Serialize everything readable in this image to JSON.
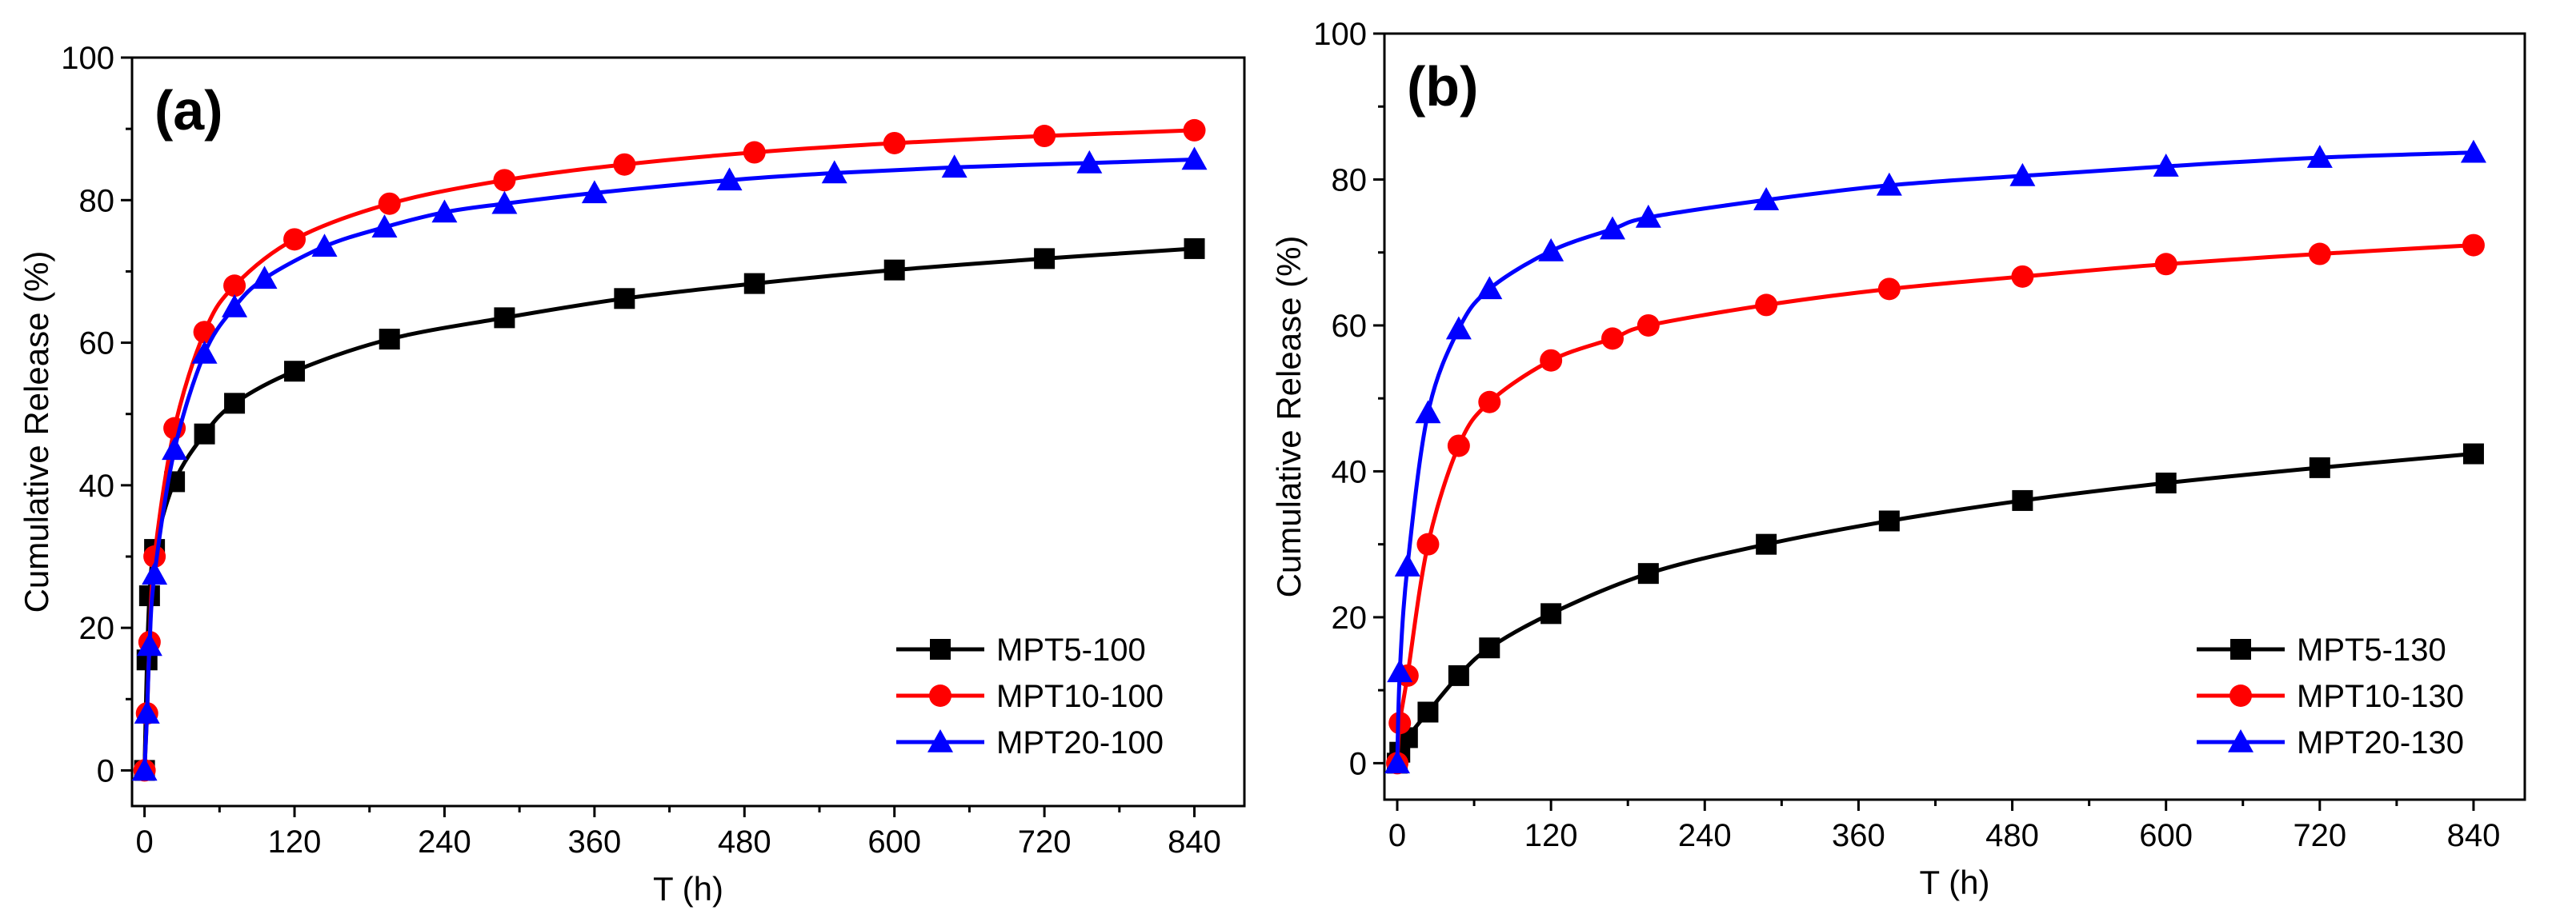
{
  "chart_data": [
    {
      "type": "line",
      "panel_label": "(a)",
      "xlabel": "T (h)",
      "ylabel": "Cumulative Release (%)",
      "xlim": [
        -10,
        880
      ],
      "ylim": [
        -5,
        100
      ],
      "xticks": [
        0,
        120,
        240,
        360,
        480,
        600,
        720,
        840
      ],
      "xtick_labels": [
        "0",
        "120",
        "240",
        "360",
        "480",
        "600",
        "720",
        "840"
      ],
      "yticks": [
        0,
        20,
        40,
        60,
        80,
        100
      ],
      "ytick_labels": [
        "0",
        "20",
        "40",
        "60",
        "80",
        "100"
      ],
      "legend_position": "bottom-right",
      "series": [
        {
          "name": "MPT5-100",
          "color": "#000000",
          "marker": "square",
          "x": [
            0,
            2,
            4,
            8,
            24,
            48,
            72,
            120,
            196,
            288,
            384,
            488,
            600,
            720,
            840
          ],
          "y": [
            0,
            15.5,
            24.5,
            31,
            40.5,
            47.2,
            51.5,
            56,
            60.5,
            63.5,
            66.2,
            68.3,
            70.2,
            71.8,
            73.2
          ]
        },
        {
          "name": "MPT10-100",
          "color": "#ff0000",
          "marker": "circle",
          "x": [
            0,
            2,
            4,
            8,
            24,
            48,
            72,
            120,
            196,
            288,
            384,
            488,
            600,
            720,
            840
          ],
          "y": [
            0,
            8,
            18,
            30,
            48,
            61.5,
            68,
            74.5,
            79.5,
            82.8,
            85,
            86.7,
            88,
            89,
            89.8
          ]
        },
        {
          "name": "MPT20-100",
          "color": "#0000ff",
          "marker": "triangle",
          "x": [
            0,
            2,
            4,
            8,
            24,
            48,
            72,
            96,
            144,
            192,
            240,
            288,
            360,
            468,
            552,
            648,
            756,
            840
          ],
          "y": [
            0,
            8,
            17.5,
            27.5,
            45,
            58.5,
            65,
            69,
            73.5,
            76.2,
            78.3,
            79.5,
            81,
            82.8,
            83.8,
            84.6,
            85.2,
            85.7
          ]
        }
      ]
    },
    {
      "type": "line",
      "panel_label": "(b)",
      "xlabel": "T (h)",
      "ylabel": "Cumulative Release (%)",
      "xlim": [
        -10,
        880
      ],
      "ylim": [
        -5,
        100
      ],
      "xticks": [
        0,
        120,
        240,
        360,
        480,
        600,
        720,
        840
      ],
      "xtick_labels": [
        "0",
        "120",
        "240",
        "360",
        "480",
        "600",
        "720",
        "840"
      ],
      "yticks": [
        0,
        20,
        40,
        60,
        80,
        100
      ],
      "ytick_labels": [
        "0",
        "20",
        "40",
        "60",
        "80",
        "100"
      ],
      "legend_position": "bottom-right",
      "series": [
        {
          "name": "MPT5-130",
          "color": "#000000",
          "marker": "square",
          "x": [
            0,
            2,
            8,
            24,
            48,
            72,
            120,
            196,
            288,
            384,
            488,
            600,
            720,
            840
          ],
          "y": [
            0,
            1.5,
            3.5,
            7,
            12,
            15.8,
            20.5,
            26,
            30,
            33.2,
            36,
            38.4,
            40.5,
            42.4
          ]
        },
        {
          "name": "MPT10-130",
          "color": "#ff0000",
          "marker": "circle",
          "x": [
            0,
            2,
            8,
            24,
            48,
            72,
            120,
            168,
            196,
            288,
            384,
            488,
            600,
            720,
            840
          ],
          "y": [
            0,
            5.5,
            12,
            30,
            43.5,
            49.5,
            55.2,
            58.2,
            60,
            62.8,
            65,
            66.7,
            68.4,
            69.8,
            71
          ]
        },
        {
          "name": "MPT20-130",
          "color": "#0000ff",
          "marker": "triangle",
          "x": [
            0,
            2,
            8,
            24,
            48,
            72,
            120,
            168,
            196,
            288,
            384,
            488,
            600,
            720,
            840
          ],
          "y": [
            0,
            12.5,
            27,
            48,
            59.5,
            65,
            70.2,
            73.2,
            74.8,
            77.2,
            79.2,
            80.5,
            81.8,
            83,
            83.7
          ]
        }
      ]
    }
  ]
}
